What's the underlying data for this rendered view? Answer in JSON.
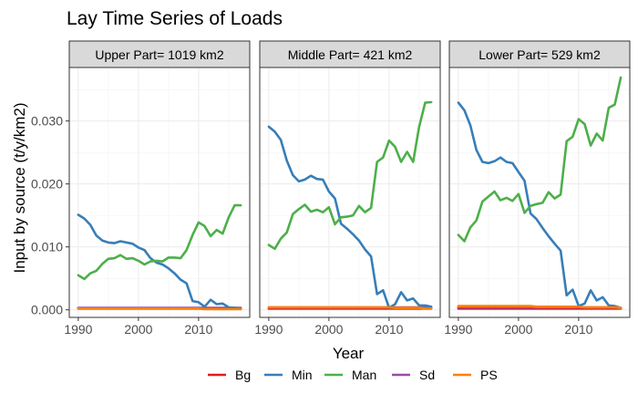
{
  "chart_data": {
    "type": "line",
    "title": "Lay Time Series of Loads",
    "xlabel": "Year",
    "ylabel": "Input by source (t/y/km2)",
    "xlim": [
      1988.5,
      2018.5
    ],
    "ylim": [
      -0.0012,
      0.0385
    ],
    "x_ticks": [
      1990,
      2000,
      2010
    ],
    "y_ticks": [
      0.0,
      0.01,
      0.02,
      0.03
    ],
    "y_tick_labels": [
      "0.000",
      "0.010",
      "0.020",
      "0.030"
    ],
    "grid": true,
    "legend_position": "bottom",
    "legend": [
      {
        "name": "Bg",
        "color": "#e41a1c"
      },
      {
        "name": "Min",
        "color": "#377eb8"
      },
      {
        "name": "Man",
        "color": "#4daf4a"
      },
      {
        "name": "Sd",
        "color": "#984ea3"
      },
      {
        "name": "PS",
        "color": "#ff7f00"
      }
    ],
    "years": [
      1990,
      1991,
      1992,
      1993,
      1994,
      1995,
      1996,
      1997,
      1998,
      1999,
      2000,
      2001,
      2002,
      2003,
      2004,
      2005,
      2006,
      2007,
      2008,
      2009,
      2010,
      2011,
      2012,
      2013,
      2014,
      2015,
      2016,
      2017
    ],
    "panels": [
      {
        "label": "Upper Part= 1019 km2",
        "series": [
          {
            "name": "Bg",
            "color": "#e41a1c",
            "values": [
              0.0002,
              0.0002,
              0.0002,
              0.0002,
              0.0002,
              0.0002,
              0.0002,
              0.0002,
              0.0002,
              0.0002,
              0.0002,
              0.0002,
              0.0002,
              0.0002,
              0.0002,
              0.0002,
              0.0002,
              0.0002,
              0.0002,
              0.0002,
              0.0002,
              0.0002,
              0.0002,
              0.0002,
              0.0002,
              0.0002,
              0.0002,
              0.0002
            ]
          },
          {
            "name": "Sd",
            "color": "#984ea3",
            "values": [
              0.0003,
              0.0003,
              0.0003,
              0.0003,
              0.0003,
              0.0003,
              0.0003,
              0.0003,
              0.0003,
              0.0003,
              0.0003,
              0.0003,
              0.0003,
              0.0003,
              0.0003,
              0.0003,
              0.0003,
              0.0003,
              0.0003,
              0.0003,
              0.0003,
              0.0003,
              0.0003,
              0.0003,
              0.0003,
              0.0003,
              0.0003,
              0.0003
            ]
          },
          {
            "name": "Min",
            "color": "#377eb8",
            "values": [
              0.0151,
              0.0145,
              0.0135,
              0.0118,
              0.011,
              0.0107,
              0.0106,
              0.0109,
              0.0107,
              0.0105,
              0.0099,
              0.0095,
              0.0082,
              0.0075,
              0.0072,
              0.0066,
              0.0058,
              0.0048,
              0.0042,
              0.0014,
              0.0012,
              0.0005,
              0.0016,
              0.0009,
              0.001,
              0.0004,
              0.0003,
              0.0002
            ]
          },
          {
            "name": "Man",
            "color": "#4daf4a",
            "values": [
              0.0055,
              0.0049,
              0.0058,
              0.0062,
              0.0073,
              0.0081,
              0.0082,
              0.0087,
              0.0081,
              0.0082,
              0.0078,
              0.0072,
              0.0077,
              0.0078,
              0.0077,
              0.0083,
              0.0083,
              0.0082,
              0.0095,
              0.0119,
              0.0139,
              0.0133,
              0.0117,
              0.0127,
              0.0121,
              0.0147,
              0.0166,
              0.0166
            ]
          },
          {
            "name": "PS",
            "color": "#ff7f00",
            "values": [
              0.0002,
              0.0002,
              0.0002,
              0.0002,
              0.0002,
              0.0002,
              0.0002,
              0.0002,
              0.0002,
              0.0002,
              0.0002,
              0.0002,
              0.0002,
              0.0002,
              0.0002,
              0.0002,
              0.0002,
              0.0002,
              0.0002,
              0.0002,
              0.0002,
              0.0001,
              0.0001,
              0.0001,
              0.0001,
              0.0001,
              0.0001,
              0.0001
            ]
          }
        ]
      },
      {
        "label": "Middle Part= 421 km2",
        "series": [
          {
            "name": "Bg",
            "color": "#e41a1c",
            "values": [
              0.0002,
              0.0002,
              0.0002,
              0.0002,
              0.0002,
              0.0002,
              0.0002,
              0.0002,
              0.0002,
              0.0002,
              0.0002,
              0.0002,
              0.0002,
              0.0002,
              0.0002,
              0.0002,
              0.0002,
              0.0002,
              0.0002,
              0.0002,
              0.0002,
              0.0002,
              0.0002,
              0.0002,
              0.0002,
              0.0002,
              0.0002,
              0.0002
            ]
          },
          {
            "name": "Sd",
            "color": "#984ea3",
            "values": [
              0.0004,
              0.0004,
              0.0004,
              0.0004,
              0.0004,
              0.0004,
              0.0004,
              0.0004,
              0.0004,
              0.0004,
              0.0004,
              0.0004,
              0.0004,
              0.0004,
              0.0004,
              0.0004,
              0.0004,
              0.0004,
              0.0004,
              0.0004,
              0.0004,
              0.0004,
              0.0004,
              0.0004,
              0.0004,
              0.0004,
              0.0004,
              0.0004
            ]
          },
          {
            "name": "Min",
            "color": "#377eb8",
            "values": [
              0.0291,
              0.0283,
              0.027,
              0.0237,
              0.0214,
              0.0204,
              0.0207,
              0.0213,
              0.0208,
              0.0207,
              0.0188,
              0.0177,
              0.0137,
              0.0129,
              0.012,
              0.011,
              0.0096,
              0.0085,
              0.0025,
              0.0031,
              0.0003,
              0.0009,
              0.0028,
              0.0015,
              0.0018,
              0.0007,
              0.0007,
              0.0005
            ]
          },
          {
            "name": "Man",
            "color": "#4daf4a",
            "values": [
              0.0103,
              0.0097,
              0.0113,
              0.0123,
              0.0152,
              0.016,
              0.0167,
              0.0156,
              0.0159,
              0.0155,
              0.0163,
              0.0136,
              0.0147,
              0.0148,
              0.015,
              0.0165,
              0.0155,
              0.0162,
              0.0235,
              0.0242,
              0.0269,
              0.0259,
              0.0235,
              0.0251,
              0.0235,
              0.0291,
              0.0329,
              0.033
            ]
          },
          {
            "name": "PS",
            "color": "#ff7f00",
            "values": [
              0.0004,
              0.0004,
              0.0004,
              0.0004,
              0.0004,
              0.0004,
              0.0004,
              0.0004,
              0.0004,
              0.0004,
              0.0004,
              0.0004,
              0.0004,
              0.0004,
              0.0004,
              0.0004,
              0.0004,
              0.0004,
              0.0004,
              0.0004,
              0.0004,
              0.0003,
              0.0003,
              0.0003,
              0.0003,
              0.0003,
              0.0002,
              0.0002
            ]
          }
        ]
      },
      {
        "label": "Lower Part= 529 km2",
        "series": [
          {
            "name": "Bg",
            "color": "#e41a1c",
            "values": [
              0.0002,
              0.0002,
              0.0002,
              0.0002,
              0.0002,
              0.0002,
              0.0002,
              0.0002,
              0.0002,
              0.0002,
              0.0002,
              0.0002,
              0.0002,
              0.0002,
              0.0002,
              0.0002,
              0.0002,
              0.0002,
              0.0002,
              0.0002,
              0.0002,
              0.0002,
              0.0002,
              0.0002,
              0.0002,
              0.0002,
              0.0002,
              0.0002
            ]
          },
          {
            "name": "Sd",
            "color": "#984ea3",
            "values": [
              0.0004,
              0.0004,
              0.0004,
              0.0004,
              0.0004,
              0.0004,
              0.0004,
              0.0004,
              0.0004,
              0.0004,
              0.0004,
              0.0004,
              0.0004,
              0.0004,
              0.0004,
              0.0004,
              0.0004,
              0.0004,
              0.0004,
              0.0004,
              0.0004,
              0.0004,
              0.0004,
              0.0004,
              0.0004,
              0.0004,
              0.0004,
              0.0003
            ]
          },
          {
            "name": "Min",
            "color": "#377eb8",
            "values": [
              0.0329,
              0.0317,
              0.0293,
              0.0254,
              0.0235,
              0.0233,
              0.0236,
              0.0242,
              0.0235,
              0.0233,
              0.0219,
              0.0205,
              0.0153,
              0.0144,
              0.013,
              0.0117,
              0.0105,
              0.0094,
              0.0023,
              0.0032,
              0.0006,
              0.001,
              0.0031,
              0.0015,
              0.002,
              0.0007,
              0.0006,
              0.0003
            ]
          },
          {
            "name": "Man",
            "color": "#4daf4a",
            "values": [
              0.0119,
              0.0109,
              0.0131,
              0.0142,
              0.0172,
              0.018,
              0.0188,
              0.0174,
              0.0178,
              0.0173,
              0.0184,
              0.0154,
              0.0165,
              0.0168,
              0.017,
              0.0187,
              0.0177,
              0.0183,
              0.0268,
              0.0275,
              0.0303,
              0.0295,
              0.0261,
              0.028,
              0.0269,
              0.0321,
              0.0326,
              0.0369
            ]
          },
          {
            "name": "PS",
            "color": "#ff7f00",
            "values": [
              0.0006,
              0.0006,
              0.0006,
              0.0006,
              0.0006,
              0.0006,
              0.0006,
              0.0006,
              0.0006,
              0.0006,
              0.0006,
              0.0006,
              0.0006,
              0.0005,
              0.0005,
              0.0005,
              0.0005,
              0.0005,
              0.0005,
              0.0005,
              0.0005,
              0.0004,
              0.0004,
              0.0004,
              0.0004,
              0.0004,
              0.0004,
              0.0003
            ]
          }
        ]
      }
    ]
  }
}
